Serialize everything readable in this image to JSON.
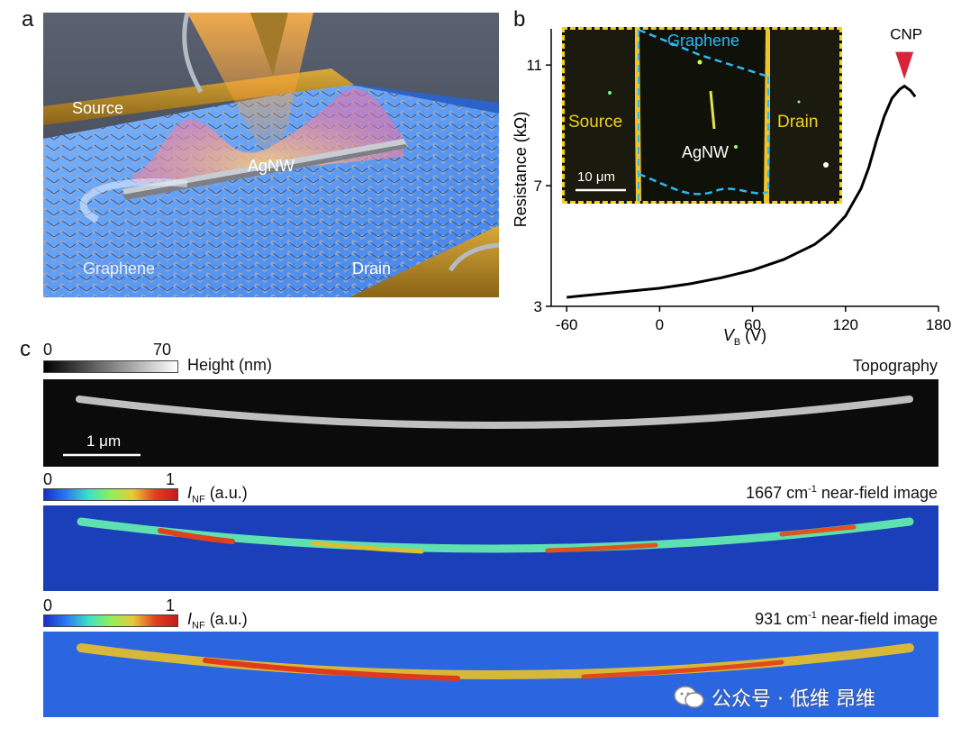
{
  "panel_a": {
    "label": "a",
    "source": "Source",
    "drain": "Drain",
    "agnw": "AgNW",
    "graphene": "Graphene"
  },
  "panel_b": {
    "label": "b",
    "inset": {
      "graphene": "Graphene",
      "source": "Source",
      "drain": "Drain",
      "agnw": "AgNW",
      "scale_bar": "10 μm"
    },
    "chart_data": {
      "type": "line",
      "title": "",
      "xlabel_main": "V",
      "xlabel_sub": "B",
      "xlabel_unit": " (V)",
      "ylabel": "Resistance (kΩ)",
      "xlim": [
        -70,
        180
      ],
      "ylim": [
        3,
        12.2
      ],
      "xticks": [
        -60,
        0,
        60,
        120,
        180
      ],
      "yticks": [
        3,
        7,
        11
      ],
      "xtick_labels": [
        "-60",
        "0",
        "60",
        "120",
        "180"
      ],
      "ytick_labels": [
        "3",
        "7",
        "11"
      ],
      "annotation": "CNP",
      "annotation_x": 158,
      "series": [
        {
          "name": "Resistance",
          "x": [
            -60,
            -40,
            -20,
            0,
            20,
            40,
            60,
            80,
            100,
            110,
            120,
            130,
            135,
            140,
            145,
            150,
            155,
            158,
            162,
            165
          ],
          "y": [
            3.3,
            3.4,
            3.5,
            3.6,
            3.75,
            3.95,
            4.2,
            4.55,
            5.05,
            5.45,
            6.0,
            6.9,
            7.6,
            8.5,
            9.3,
            9.9,
            10.2,
            10.3,
            10.15,
            9.95
          ]
        }
      ]
    }
  },
  "panel_c": {
    "label": "c",
    "topo_bar_min": "0",
    "topo_bar_max": "70",
    "topo_bar_label": "Height (nm)",
    "topo_title": "Topography",
    "scale_bar": "1 μm",
    "nf1_bar_min": "0",
    "nf1_bar_max": "1",
    "nf1_bar_label_main": "I",
    "nf1_bar_label_sub": "NF",
    "nf1_bar_label_unit": " (a.u.)",
    "nf1_title_num": "1667 cm",
    "nf1_title_sup": "-1",
    "nf1_title_rest": " near-field image",
    "nf2_bar_min": "0",
    "nf2_bar_max": "1",
    "nf2_bar_label_main": "I",
    "nf2_bar_label_sub": "NF",
    "nf2_bar_label_unit": " (a.u.)",
    "nf2_title_num": "931 cm",
    "nf2_title_sup": "-1",
    "nf2_title_rest": " near-field image"
  },
  "watermark": "公众号 · 低维 昂维"
}
